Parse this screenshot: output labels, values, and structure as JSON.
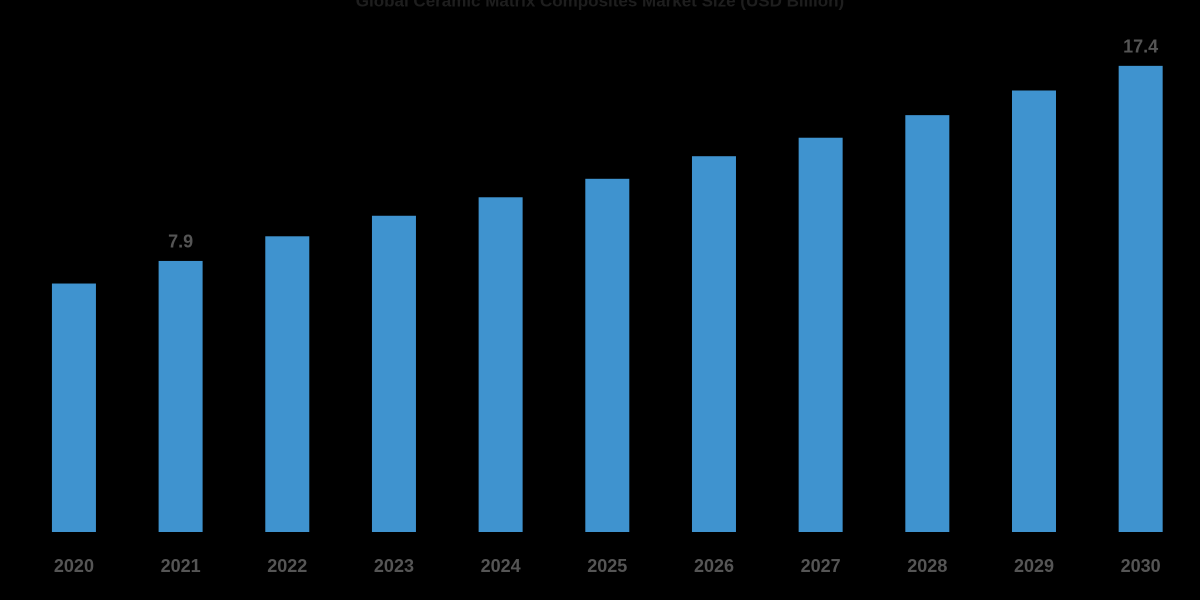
{
  "chart_data": {
    "type": "bar",
    "title": "Global Ceramic Matrix Composites Market Size (USD Billion)",
    "categories": [
      "2020",
      "2021",
      "2022",
      "2023",
      "2024",
      "2025",
      "2026",
      "2027",
      "2028",
      "2029",
      "2030"
    ],
    "values": [
      6.8,
      7.9,
      9.1,
      10.1,
      11.0,
      11.9,
      13.0,
      13.9,
      15.0,
      16.2,
      17.4
    ],
    "value_labels": [
      null,
      "7.9",
      null,
      null,
      null,
      null,
      null,
      null,
      null,
      null,
      "17.4"
    ],
    "color": "#3f93cf",
    "ylim": [
      -5.3,
      19
    ]
  }
}
